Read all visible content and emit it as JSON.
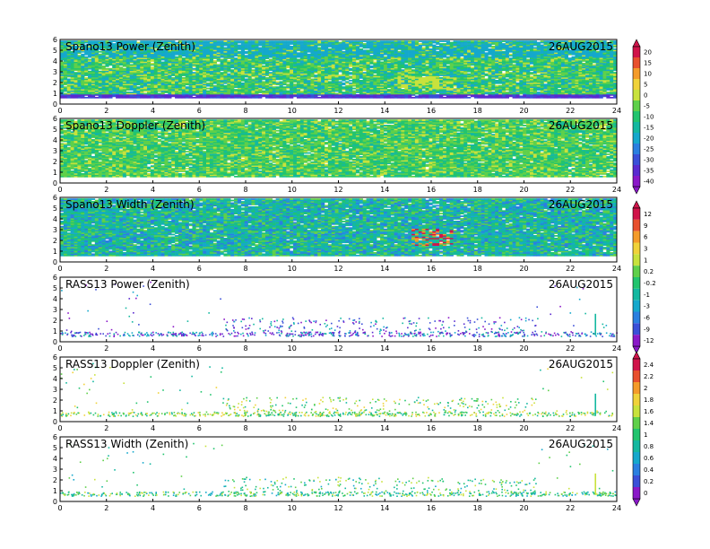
{
  "chart_data": [
    {
      "type": "heatmap",
      "title": "Spano13 Power (Zenith)",
      "date": "26AUG2015",
      "xlim": [
        0,
        24
      ],
      "ylim": [
        0,
        6
      ],
      "xticks": [
        "0",
        "2",
        "4",
        "6",
        "8",
        "10",
        "12",
        "14",
        "16",
        "18",
        "20",
        "22",
        "24"
      ],
      "yticks": [
        "0",
        "1",
        "2",
        "3",
        "4",
        "5",
        "6"
      ],
      "fill": "dense",
      "colorscale": "snr"
    },
    {
      "type": "heatmap",
      "title": "Spano13 Doppler (Zenith)",
      "date": "26AUG2015",
      "xlim": [
        0,
        24
      ],
      "ylim": [
        0,
        6
      ],
      "xticks": [
        "0",
        "2",
        "4",
        "6",
        "8",
        "10",
        "12",
        "14",
        "16",
        "18",
        "20",
        "22",
        "24"
      ],
      "yticks": [
        "0",
        "1",
        "2",
        "3",
        "4",
        "5",
        "6"
      ],
      "fill": "dense",
      "colorscale": "doppler"
    },
    {
      "type": "heatmap",
      "title": "Spano13 Width (Zenith)",
      "date": "26AUG2015",
      "xlim": [
        0,
        24
      ],
      "ylim": [
        0,
        6
      ],
      "xticks": [
        "0",
        "2",
        "4",
        "6",
        "8",
        "10",
        "12",
        "14",
        "16",
        "18",
        "20",
        "22",
        "24"
      ],
      "yticks": [
        "0",
        "1",
        "2",
        "3",
        "4",
        "5",
        "6"
      ],
      "fill": "dense",
      "colorscale": "width"
    },
    {
      "type": "heatmap",
      "title": "RASS13 Power (Zenith)",
      "date": "26AUG2015",
      "xlim": [
        0,
        24
      ],
      "ylim": [
        0,
        6
      ],
      "xticks": [
        "0",
        "2",
        "4",
        "6",
        "8",
        "10",
        "12",
        "14",
        "16",
        "18",
        "20",
        "22",
        "24"
      ],
      "yticks": [
        "0",
        "1",
        "2",
        "3",
        "4",
        "5",
        "6"
      ],
      "fill": "sparse",
      "colorscale": "rasspower"
    },
    {
      "type": "heatmap",
      "title": "RASS13 Doppler (Zenith)",
      "date": "26AUG2015",
      "xlim": [
        0,
        24
      ],
      "ylim": [
        0,
        6
      ],
      "xticks": [
        "0",
        "2",
        "4",
        "6",
        "8",
        "10",
        "12",
        "14",
        "16",
        "18",
        "20",
        "22",
        "24"
      ],
      "yticks": [
        "0",
        "1",
        "2",
        "3",
        "4",
        "5",
        "6"
      ],
      "fill": "sparse",
      "colorscale": "rassdoppler"
    },
    {
      "type": "heatmap",
      "title": "RASS13 Width (Zenith)",
      "date": "26AUG2015",
      "xlim": [
        0,
        24
      ],
      "ylim": [
        0,
        6
      ],
      "xticks": [
        "0",
        "2",
        "4",
        "6",
        "8",
        "10",
        "12",
        "14",
        "16",
        "18",
        "20",
        "22",
        "24"
      ],
      "yticks": [
        "0",
        "1",
        "2",
        "3",
        "4",
        "5",
        "6"
      ],
      "fill": "sparse",
      "colorscale": "rasswidth"
    }
  ],
  "colorbars": [
    {
      "labels": [
        "20",
        "15",
        "10",
        "5",
        "0",
        "-5",
        "-10",
        "-15",
        "-20",
        "-25",
        "-30",
        "-35",
        "-40"
      ],
      "colors": [
        "#d0144a",
        "#e8502e",
        "#f49b2a",
        "#f0d23a",
        "#c8e23c",
        "#5fd04a",
        "#22c46e",
        "#14b8a0",
        "#15a8cc",
        "#2a7fe0",
        "#3a4fd8",
        "#5a2ad0",
        "#8a18c8"
      ]
    },
    {
      "labels": [
        "12",
        "9",
        "6",
        "3",
        "1",
        "0.2",
        "-0.2",
        "-1",
        "-3",
        "-6",
        "-9",
        "-12"
      ],
      "colors": [
        "#d0144a",
        "#e8502e",
        "#f49b2a",
        "#f0d23a",
        "#c8e23c",
        "#5fd04a",
        "#22c46e",
        "#14b8a0",
        "#15a8cc",
        "#2a7fe0",
        "#3a4fd8",
        "#8a18c8"
      ]
    },
    {
      "labels": [
        "2.4",
        "2.2",
        "2",
        "1.8",
        "1.6",
        "1.4",
        "1",
        "0.8",
        "0.6",
        "0.4",
        "0.2",
        "0"
      ],
      "colors": [
        "#d0144a",
        "#e8502e",
        "#f49b2a",
        "#f0d23a",
        "#c8e23c",
        "#5fd04a",
        "#22c46e",
        "#14b8a0",
        "#15a8cc",
        "#2a7fe0",
        "#3a4fd8",
        "#8a18c8"
      ]
    }
  ]
}
